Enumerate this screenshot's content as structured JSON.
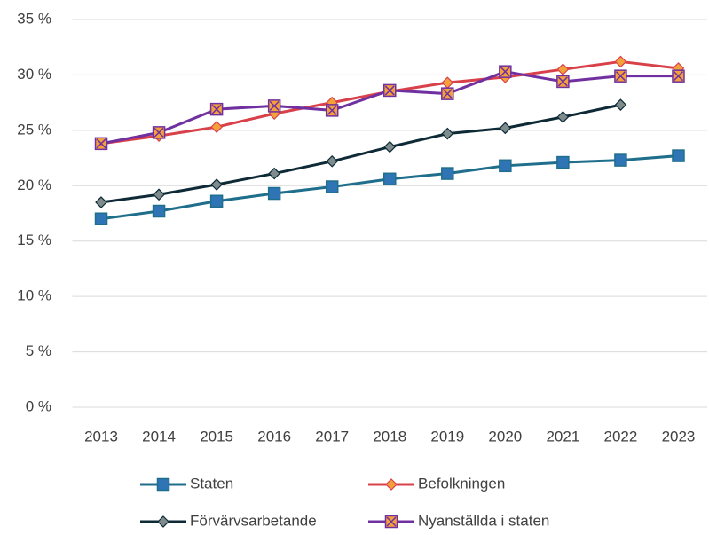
{
  "chart_data": {
    "type": "line",
    "categories": [
      "2013",
      "2014",
      "2015",
      "2016",
      "2017",
      "2018",
      "2019",
      "2020",
      "2021",
      "2022",
      "2023"
    ],
    "series": [
      {
        "name": "Staten",
        "color": "#1f6e8c",
        "marker": "square",
        "marker_color": "#2f75b5",
        "values": [
          17.0,
          17.7,
          18.6,
          19.3,
          19.9,
          20.6,
          21.1,
          21.8,
          22.1,
          22.3,
          22.7
        ]
      },
      {
        "name": "Befolkningen",
        "color": "#d9414a",
        "marker": "diamond",
        "marker_color": "#f4a13c",
        "values": [
          23.8,
          24.5,
          25.3,
          26.5,
          27.5,
          28.5,
          29.3,
          29.8,
          30.5,
          31.2,
          30.6
        ]
      },
      {
        "name": "Förvärvsarbetande",
        "color": "#0d2a36",
        "marker": "diamond",
        "marker_color": "#7f8c8d",
        "values": [
          18.5,
          19.2,
          20.1,
          21.1,
          22.2,
          23.5,
          24.7,
          25.2,
          26.2,
          27.3,
          null
        ]
      },
      {
        "name": "Nyanställda i staten",
        "color": "#7030a0",
        "marker": "square-x",
        "marker_color": "#f4a13c",
        "values": [
          23.8,
          24.8,
          26.9,
          27.2,
          26.8,
          28.6,
          28.3,
          30.3,
          29.4,
          29.9,
          29.9
        ]
      }
    ],
    "ylim": [
      0,
      35
    ],
    "yticks": [
      {
        "value": 0,
        "label": "0 %"
      },
      {
        "value": 5,
        "label": "5 %"
      },
      {
        "value": 10,
        "label": "10 %"
      },
      {
        "value": 15,
        "label": "15 %"
      },
      {
        "value": 20,
        "label": "20 %"
      },
      {
        "value": 25,
        "label": "25 %"
      },
      {
        "value": 30,
        "label": "30 %"
      },
      {
        "value": 35,
        "label": "35 %"
      }
    ],
    "grid": true,
    "legend": "bottom"
  }
}
